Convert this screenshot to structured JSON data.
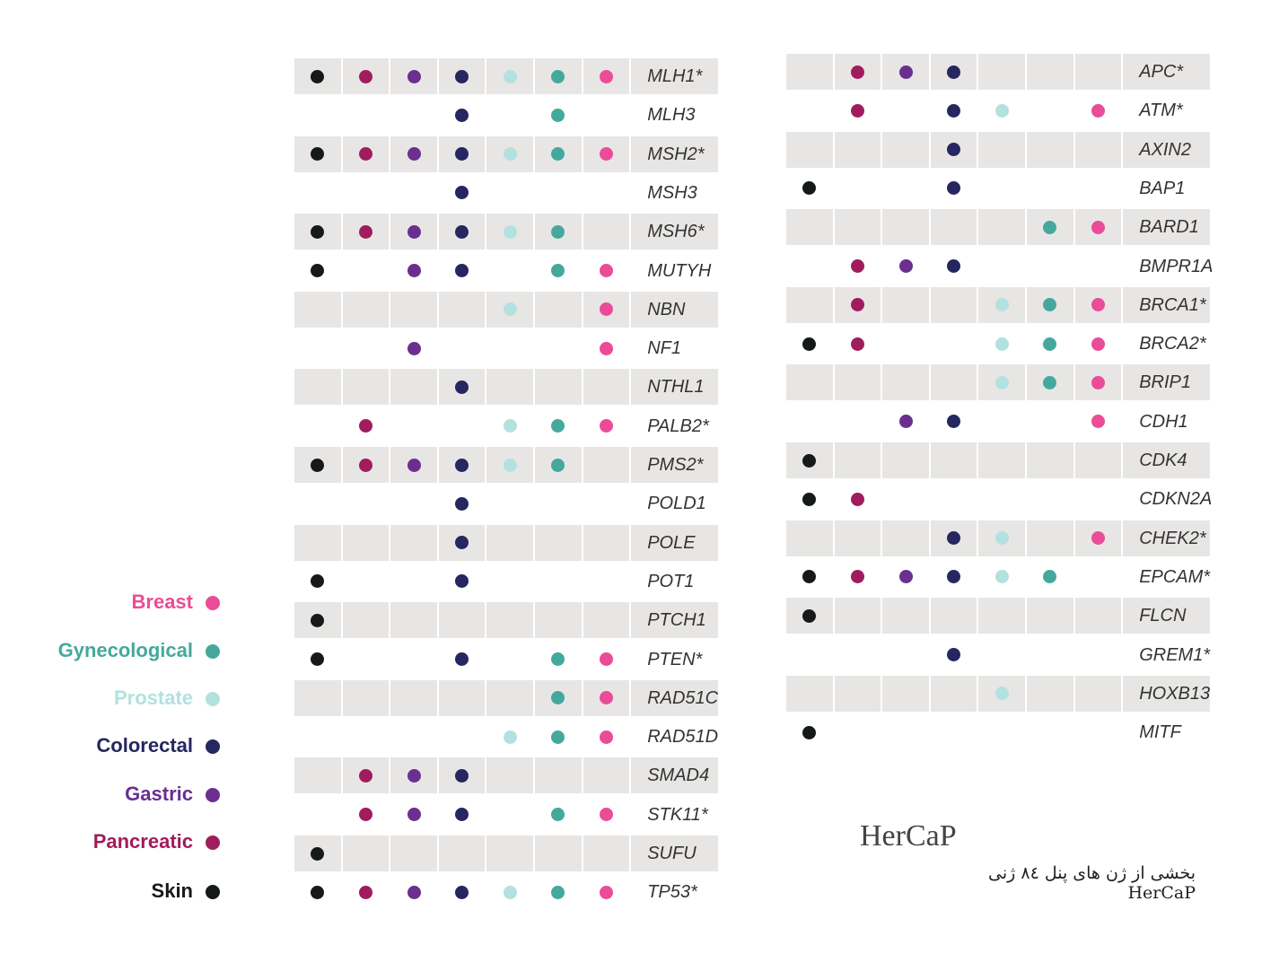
{
  "title": "HerCaP",
  "subtitle": "بخشی از ژن های پنل ۸٤ ژنی HerCaP",
  "chart_data": {
    "type": "table",
    "title": "HerCaP",
    "categories": [
      "Skin",
      "Pancreatic",
      "Gastric",
      "Colorectal",
      "Prostate",
      "Gynecological",
      "Breast"
    ],
    "colors": {
      "Skin": "#16191a",
      "Pancreatic": "#a11c5d",
      "Gastric": "#6a2f8f",
      "Colorectal": "#262660",
      "Prostate": "#b2e1e0",
      "Gynecological": "#44a99c",
      "Breast": "#ea4c97"
    },
    "legend": [
      "Breast",
      "Gynecological",
      "Prostate",
      "Colorectal",
      "Gastric",
      "Pancreatic",
      "Skin"
    ],
    "legend_placement": "left",
    "left_table": [
      {
        "gene": "MLH1*",
        "m": [
          1,
          1,
          1,
          1,
          1,
          1,
          1
        ]
      },
      {
        "gene": "MLH3",
        "m": [
          0,
          0,
          0,
          1,
          0,
          1,
          0
        ]
      },
      {
        "gene": "MSH2*",
        "m": [
          1,
          1,
          1,
          1,
          1,
          1,
          1
        ]
      },
      {
        "gene": "MSH3",
        "m": [
          0,
          0,
          0,
          1,
          0,
          0,
          0
        ]
      },
      {
        "gene": "MSH6*",
        "m": [
          1,
          1,
          1,
          1,
          1,
          1,
          0
        ]
      },
      {
        "gene": "MUTYH",
        "m": [
          1,
          0,
          1,
          1,
          0,
          1,
          1
        ]
      },
      {
        "gene": "NBN",
        "m": [
          0,
          0,
          0,
          0,
          1,
          0,
          1
        ]
      },
      {
        "gene": "NF1",
        "m": [
          0,
          0,
          1,
          0,
          0,
          0,
          1
        ]
      },
      {
        "gene": "NTHL1",
        "m": [
          0,
          0,
          0,
          1,
          0,
          0,
          0
        ]
      },
      {
        "gene": "PALB2*",
        "m": [
          0,
          1,
          0,
          0,
          1,
          1,
          1
        ]
      },
      {
        "gene": "PMS2*",
        "m": [
          1,
          1,
          1,
          1,
          1,
          1,
          0
        ]
      },
      {
        "gene": "POLD1",
        "m": [
          0,
          0,
          0,
          1,
          0,
          0,
          0
        ]
      },
      {
        "gene": "POLE",
        "m": [
          0,
          0,
          0,
          1,
          0,
          0,
          0
        ]
      },
      {
        "gene": "POT1",
        "m": [
          1,
          0,
          0,
          1,
          0,
          0,
          0
        ]
      },
      {
        "gene": "PTCH1",
        "m": [
          1,
          0,
          0,
          0,
          0,
          0,
          0
        ]
      },
      {
        "gene": "PTEN*",
        "m": [
          1,
          0,
          0,
          1,
          0,
          1,
          1
        ]
      },
      {
        "gene": "RAD51C",
        "m": [
          0,
          0,
          0,
          0,
          0,
          1,
          1
        ]
      },
      {
        "gene": "RAD51D",
        "m": [
          0,
          0,
          0,
          0,
          1,
          1,
          1
        ]
      },
      {
        "gene": "SMAD4",
        "m": [
          0,
          1,
          1,
          1,
          0,
          0,
          0
        ]
      },
      {
        "gene": "STK11*",
        "m": [
          0,
          1,
          1,
          1,
          0,
          1,
          1
        ]
      },
      {
        "gene": "SUFU",
        "m": [
          1,
          0,
          0,
          0,
          0,
          0,
          0
        ]
      },
      {
        "gene": "TP53*",
        "m": [
          1,
          1,
          1,
          1,
          1,
          1,
          1
        ]
      }
    ],
    "right_table": [
      {
        "gene": "APC*",
        "m": [
          0,
          1,
          1,
          1,
          0,
          0,
          0
        ]
      },
      {
        "gene": "ATM*",
        "m": [
          0,
          1,
          0,
          1,
          1,
          0,
          1
        ]
      },
      {
        "gene": "AXIN2",
        "m": [
          0,
          0,
          0,
          1,
          0,
          0,
          0
        ]
      },
      {
        "gene": "BAP1",
        "m": [
          1,
          0,
          0,
          1,
          0,
          0,
          0
        ]
      },
      {
        "gene": "BARD1",
        "m": [
          0,
          0,
          0,
          0,
          0,
          1,
          1
        ]
      },
      {
        "gene": "BMPR1A",
        "m": [
          0,
          1,
          1,
          1,
          0,
          0,
          0
        ]
      },
      {
        "gene": "BRCA1*",
        "m": [
          0,
          1,
          0,
          0,
          1,
          1,
          1
        ]
      },
      {
        "gene": "BRCA2*",
        "m": [
          1,
          1,
          0,
          0,
          1,
          1,
          1
        ]
      },
      {
        "gene": "BRIP1",
        "m": [
          0,
          0,
          0,
          0,
          1,
          1,
          1
        ]
      },
      {
        "gene": "CDH1",
        "m": [
          0,
          0,
          1,
          1,
          0,
          0,
          1
        ]
      },
      {
        "gene": "CDK4",
        "m": [
          1,
          0,
          0,
          0,
          0,
          0,
          0
        ]
      },
      {
        "gene": "CDKN2A",
        "m": [
          1,
          1,
          0,
          0,
          0,
          0,
          0
        ]
      },
      {
        "gene": "CHEK2*",
        "m": [
          0,
          0,
          0,
          1,
          1,
          0,
          1
        ]
      },
      {
        "gene": "EPCAM*",
        "m": [
          1,
          1,
          1,
          1,
          1,
          1,
          0
        ]
      },
      {
        "gene": "FLCN",
        "m": [
          1,
          0,
          0,
          0,
          0,
          0,
          0
        ]
      },
      {
        "gene": "GREM1*",
        "m": [
          0,
          0,
          0,
          1,
          0,
          0,
          0
        ]
      },
      {
        "gene": "HOXB13",
        "m": [
          0,
          0,
          0,
          0,
          1,
          0,
          0
        ]
      },
      {
        "gene": "MITF",
        "m": [
          1,
          0,
          0,
          0,
          0,
          0,
          0
        ]
      }
    ]
  }
}
